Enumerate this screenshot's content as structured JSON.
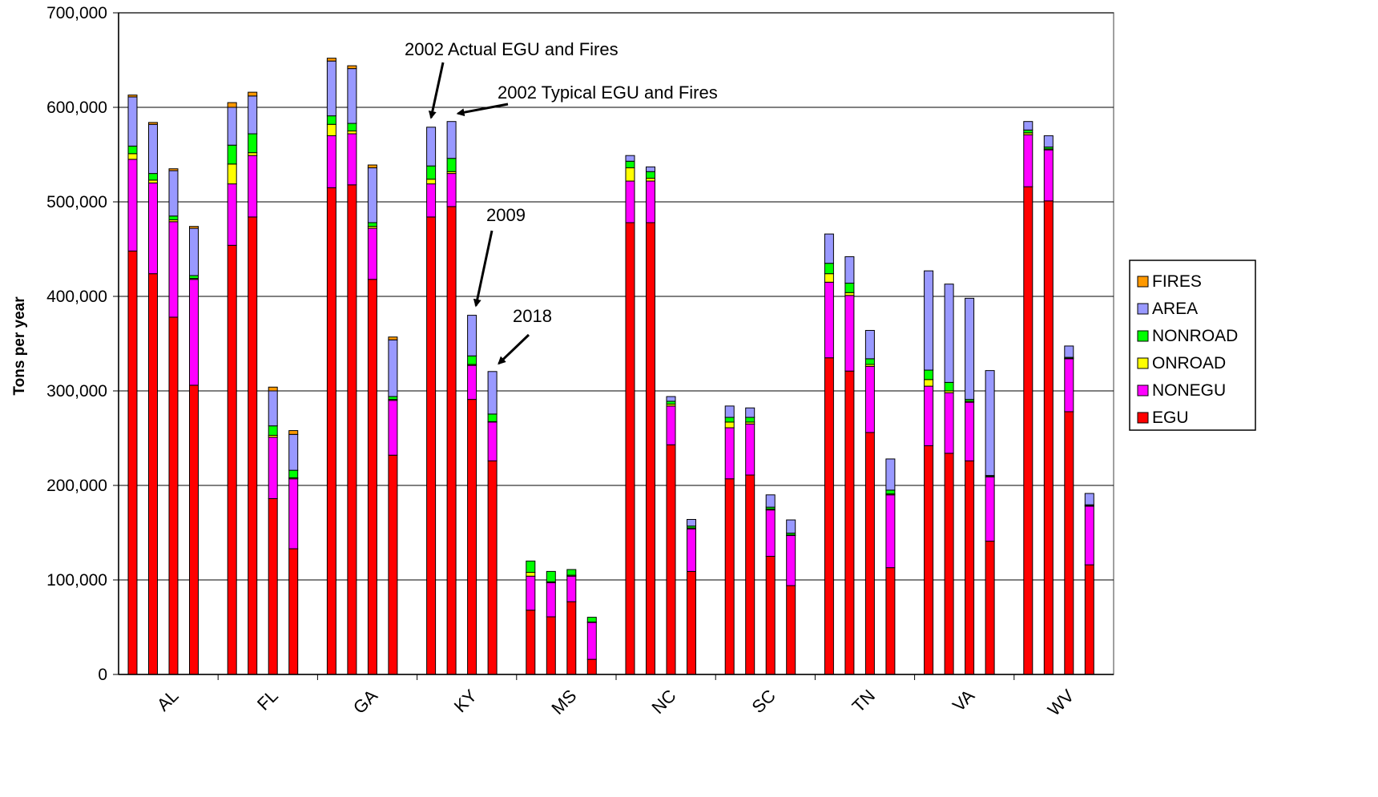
{
  "chart_data": {
    "type": "bar",
    "stacked": true,
    "title": "",
    "xlabel": "",
    "ylabel": "Tons per year",
    "ylim": [
      0,
      700000
    ],
    "yticks": [
      0,
      100000,
      200000,
      300000,
      400000,
      500000,
      600000,
      700000
    ],
    "ytick_labels": [
      "0",
      "100,000",
      "200,000",
      "300,000",
      "400,000",
      "500,000",
      "600,000",
      "700,000"
    ],
    "grid": true,
    "legend_position": "right",
    "categories": [
      "AL",
      "FL",
      "GA",
      "KY",
      "MS",
      "NC",
      "SC",
      "TN",
      "VA",
      "WV"
    ],
    "bars_per_category": 4,
    "series": [
      {
        "name": "EGU",
        "color": "#ff0000",
        "values": [
          [
            448000,
            424000,
            378000,
            306000
          ],
          [
            454000,
            484000,
            186000,
            133000
          ],
          [
            515000,
            518000,
            418000,
            232000
          ],
          [
            484000,
            495000,
            291000,
            226000
          ],
          [
            68000,
            61000,
            77000,
            16000
          ],
          [
            478000,
            478000,
            243000,
            109000
          ],
          [
            207000,
            211000,
            125000,
            94000
          ],
          [
            335000,
            321000,
            256000,
            113000
          ],
          [
            242000,
            234000,
            226000,
            141000
          ],
          [
            516000,
            501000,
            278000,
            116000
          ]
        ]
      },
      {
        "name": "NONEGU",
        "color": "#ff00ff",
        "values": [
          [
            97000,
            96000,
            101000,
            112000
          ],
          [
            65000,
            65000,
            65000,
            74000
          ],
          [
            55000,
            54000,
            54000,
            58000
          ],
          [
            35000,
            35000,
            36000,
            41000
          ],
          [
            36000,
            36000,
            27000,
            39000
          ],
          [
            44000,
            44000,
            41000,
            45000
          ],
          [
            54000,
            54000,
            49000,
            53000
          ],
          [
            80000,
            80000,
            70000,
            77000
          ],
          [
            63000,
            64000,
            62000,
            68000
          ],
          [
            55000,
            54000,
            56000,
            62000
          ]
        ]
      },
      {
        "name": "ONROAD",
        "color": "#ffff00",
        "values": [
          [
            6000,
            3000,
            2000,
            1000
          ],
          [
            21000,
            3000,
            2000,
            1000
          ],
          [
            12000,
            3000,
            2000,
            1000
          ],
          [
            5000,
            2000,
            1000,
            500
          ],
          [
            4000,
            1000,
            1000,
            500
          ],
          [
            14000,
            3000,
            2000,
            1000
          ],
          [
            6000,
            2000,
            1000,
            500
          ],
          [
            9000,
            3000,
            2000,
            1000
          ],
          [
            7000,
            2000,
            1000,
            500
          ],
          [
            2000,
            1000,
            500,
            500
          ]
        ]
      },
      {
        "name": "NONROAD",
        "color": "#00ff00",
        "values": [
          [
            8000,
            7000,
            4000,
            3000
          ],
          [
            20000,
            20000,
            10000,
            8000
          ],
          [
            9000,
            8000,
            4000,
            3000
          ],
          [
            14000,
            14000,
            9000,
            8000
          ],
          [
            12000,
            11000,
            6000,
            5000
          ],
          [
            7000,
            7000,
            3000,
            2000
          ],
          [
            5000,
            5000,
            2000,
            2000
          ],
          [
            11000,
            10000,
            6000,
            4000
          ],
          [
            10000,
            9000,
            2000,
            1000
          ],
          [
            3000,
            2000,
            1000,
            1000
          ]
        ]
      },
      {
        "name": "AREA",
        "color": "#9999ff",
        "values": [
          [
            52000,
            52000,
            48000,
            50000
          ],
          [
            40000,
            40000,
            37000,
            38000
          ],
          [
            58000,
            58000,
            58000,
            60000
          ],
          [
            41000,
            39000,
            43000,
            45000
          ],
          [
            0,
            0,
            0,
            0
          ],
          [
            6000,
            5000,
            5000,
            7000
          ],
          [
            12000,
            10000,
            13000,
            14000
          ],
          [
            31000,
            28000,
            30000,
            33000
          ],
          [
            105000,
            104000,
            107000,
            111000
          ],
          [
            9000,
            12000,
            12000,
            12000
          ]
        ]
      },
      {
        "name": "FIRES",
        "color": "#ff9900",
        "values": [
          [
            2000,
            2000,
            2000,
            2000
          ],
          [
            5000,
            4000,
            4000,
            4000
          ],
          [
            3000,
            3000,
            3000,
            3000
          ],
          [
            0,
            0,
            0,
            0
          ],
          [
            0,
            0,
            0,
            0
          ],
          [
            0,
            0,
            0,
            0
          ],
          [
            0,
            0,
            0,
            0
          ],
          [
            0,
            0,
            0,
            0
          ],
          [
            0,
            0,
            0,
            0
          ],
          [
            0,
            0,
            0,
            0
          ]
        ]
      }
    ],
    "legend_order": [
      "FIRES",
      "AREA",
      "NONROAD",
      "ONROAD",
      "NONEGU",
      "EGU"
    ],
    "annotations": [
      {
        "text": "2002 Actual EGU and Fires",
        "category": "KY",
        "bar": 0
      },
      {
        "text": "2002 Typical EGU and Fires",
        "category": "KY",
        "bar": 1
      },
      {
        "text": "2009",
        "category": "KY",
        "bar": 2
      },
      {
        "text": "2018",
        "category": "KY",
        "bar": 3
      }
    ]
  }
}
